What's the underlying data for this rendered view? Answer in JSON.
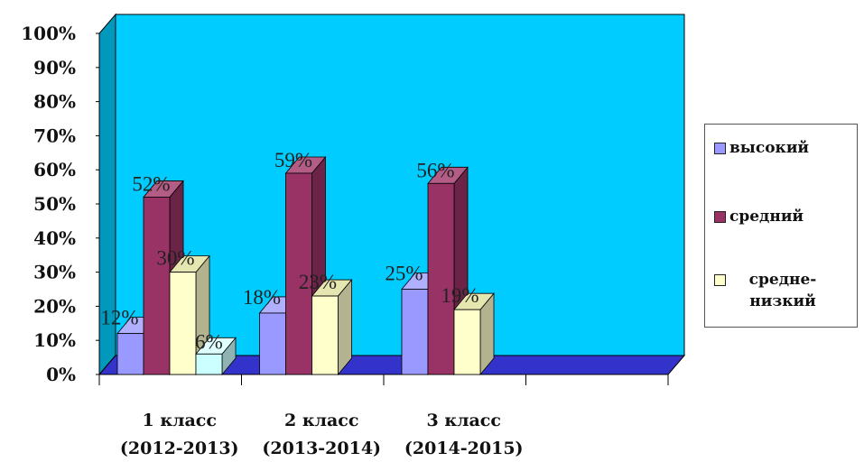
{
  "chart_data": {
    "type": "bar",
    "categories": [
      "1 класс\n(2012-2013)",
      "2 класс\n(2013-2014)",
      "3 класс\n(2014-2015)",
      ""
    ],
    "series": [
      {
        "name": "высокий",
        "values": [
          12,
          18,
          25,
          null
        ],
        "labels": [
          "12%",
          "18%",
          "25%",
          ""
        ]
      },
      {
        "name": "средний",
        "values": [
          52,
          59,
          56,
          null
        ],
        "labels": [
          "52%",
          "59%",
          "56%",
          ""
        ]
      },
      {
        "name": "средне-низкий",
        "values": [
          30,
          23,
          19,
          null
        ],
        "labels": [
          "30%",
          "23%",
          "19%",
          ""
        ]
      },
      {
        "name": "",
        "values": [
          6,
          null,
          null,
          null
        ],
        "labels": [
          "6%",
          "",
          "",
          ""
        ]
      }
    ],
    "y_ticks": [
      "0%",
      "10%",
      "20%",
      "30%",
      "40%",
      "50%",
      "60%",
      "70%",
      "80%",
      "90%",
      "100%"
    ],
    "ylim": [
      0,
      100
    ],
    "legend_position": "right",
    "grid": false
  },
  "colors": {
    "back_wall": "#00CCFF",
    "side_wall": "#0099BB",
    "floor": "#3333CC",
    "series": [
      {
        "front": "#9999FF",
        "top": "#B0B0FF",
        "side": "#6B6BB3"
      },
      {
        "front": "#993366",
        "top": "#B35C85",
        "side": "#6B2447"
      },
      {
        "front": "#FFFFCC",
        "top": "#E6E6B0",
        "side": "#B3B38F"
      },
      {
        "front": "#CCFFFF",
        "top": "#E0FFFF",
        "side": "#8FB3B3"
      }
    ]
  },
  "legend": {
    "items": [
      {
        "label": "высокий",
        "color": "#9999FF"
      },
      {
        "label": "средний",
        "color": "#993366"
      },
      {
        "label": "средне-низкий",
        "color": "#FFFFCC"
      }
    ]
  }
}
